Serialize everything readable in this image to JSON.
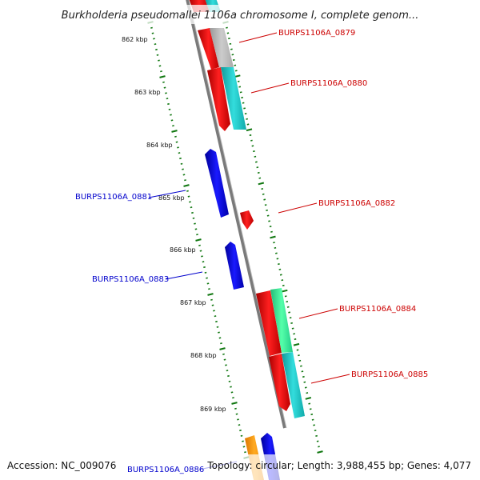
{
  "title": "Burkholderia pseudomallei 1106a chromosome I, complete genom...",
  "footer": {
    "accession": "Accession: NC_009076",
    "topology": "Topology: circular; Length: 3,988,455 bp; Genes: 4,077"
  },
  "ticks": [
    {
      "label": "862 kbp"
    },
    {
      "label": "863 kbp"
    },
    {
      "label": "864 kbp"
    },
    {
      "label": "865 kbp"
    },
    {
      "label": "866 kbp"
    },
    {
      "label": "867 kbp"
    },
    {
      "label": "868 kbp"
    },
    {
      "label": "869 kbp"
    }
  ],
  "gene_labels": [
    {
      "text": "BURPS1106A_0879",
      "strand": "forward",
      "color": "#cc0000"
    },
    {
      "text": "BURPS1106A_0880",
      "strand": "forward",
      "color": "#cc0000"
    },
    {
      "text": "BURPS1106A_0881",
      "strand": "reverse",
      "color": "#0000cc"
    },
    {
      "text": "BURPS1106A_0882",
      "strand": "forward",
      "color": "#cc0000"
    },
    {
      "text": "BURPS1106A_0883",
      "strand": "reverse",
      "color": "#0000cc"
    },
    {
      "text": "BURPS1106A_0884",
      "strand": "forward",
      "color": "#cc0000"
    },
    {
      "text": "BURPS1106A_0885",
      "strand": "forward",
      "color": "#cc0000"
    },
    {
      "text": "BURPS1106A_0886",
      "strand": "reverse",
      "color": "#0000cc"
    }
  ],
  "colors": {
    "forward_cds": "#ff0000",
    "reverse_cds": "#0000ee",
    "gene_cyan": "#22cccc",
    "gene_gray": "#bbbbbb",
    "gene_green": "#33ee99",
    "gene_orange": "#ff9900",
    "backbone": "#888888",
    "tick": "#117711"
  }
}
